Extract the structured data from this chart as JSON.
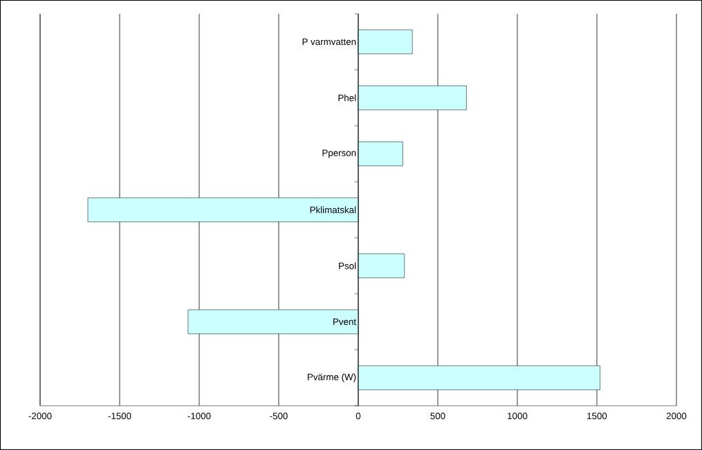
{
  "chart_data": {
    "type": "bar",
    "orientation": "horizontal",
    "categories": [
      "P varmvatten",
      "Phel",
      "Pperson",
      "Pklimatskal",
      "Psol",
      "Pvent",
      "Pvärme (W)"
    ],
    "values": [
      340,
      680,
      280,
      -1700,
      290,
      -1070,
      1520
    ],
    "color": "#ccffff",
    "xlim": [
      -2000,
      2000
    ],
    "xticks": [
      -2000,
      -1500,
      -1000,
      -500,
      0,
      500,
      1000,
      1500,
      2000
    ],
    "grid": "x"
  }
}
